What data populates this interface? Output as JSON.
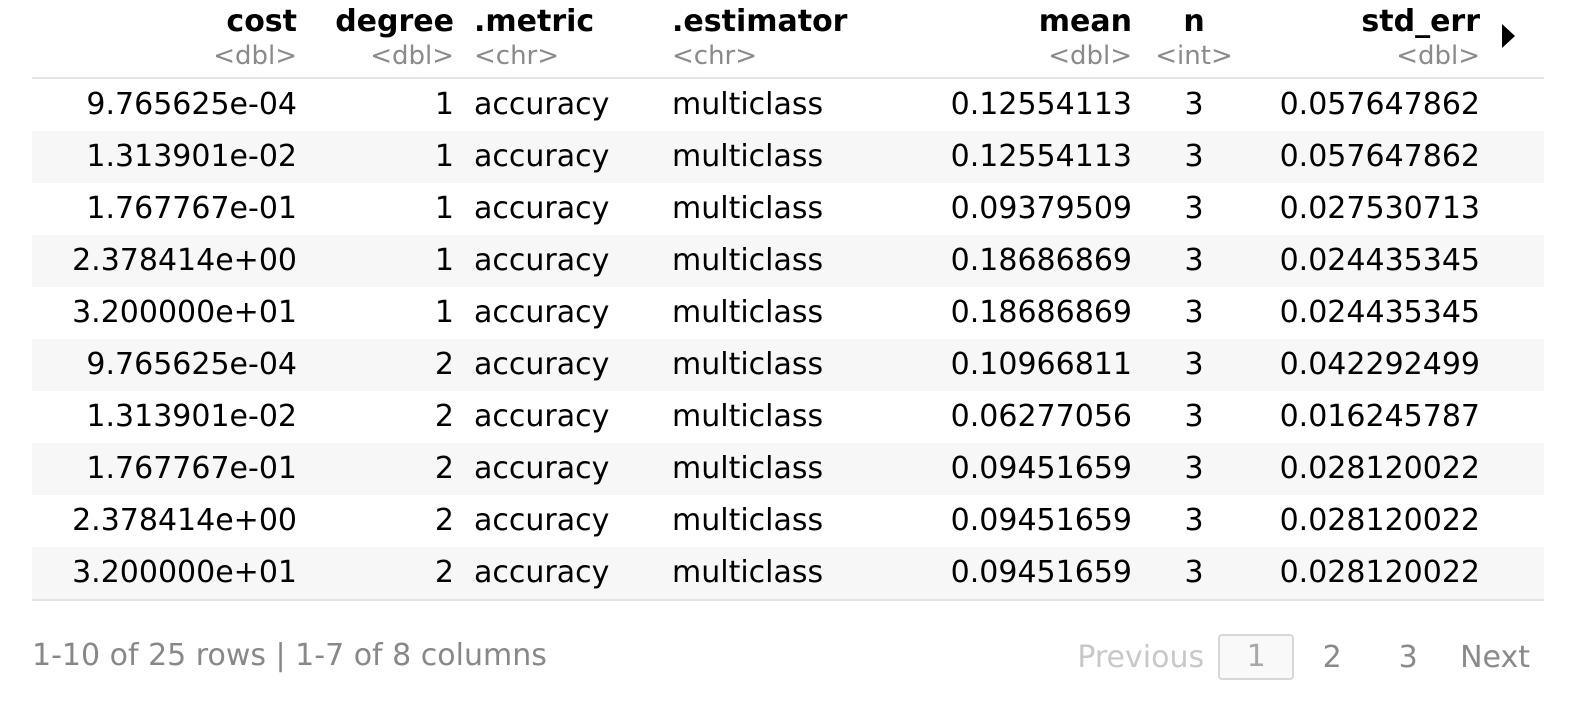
{
  "columns": [
    {
      "name": "cost",
      "type": "<dbl>"
    },
    {
      "name": "degree",
      "type": "<dbl>"
    },
    {
      "name": ".metric",
      "type": "<chr>"
    },
    {
      ".name_hint": "",
      "name": ".estimator",
      "type": "<chr>"
    },
    {
      "name": "mean",
      "type": "<dbl>"
    },
    {
      "name": "n",
      "type": "<int>"
    },
    {
      "name": "std_err",
      "type": "<dbl>"
    }
  ],
  "rows": [
    [
      "9.765625e-04",
      "1",
      "accuracy",
      "multiclass",
      "0.12554113",
      "3",
      "0.057647862"
    ],
    [
      "1.313901e-02",
      "1",
      "accuracy",
      "multiclass",
      "0.12554113",
      "3",
      "0.057647862"
    ],
    [
      "1.767767e-01",
      "1",
      "accuracy",
      "multiclass",
      "0.09379509",
      "3",
      "0.027530713"
    ],
    [
      "2.378414e+00",
      "1",
      "accuracy",
      "multiclass",
      "0.18686869",
      "3",
      "0.024435345"
    ],
    [
      "3.200000e+01",
      "1",
      "accuracy",
      "multiclass",
      "0.18686869",
      "3",
      "0.024435345"
    ],
    [
      "9.765625e-04",
      "2",
      "accuracy",
      "multiclass",
      "0.10966811",
      "3",
      "0.042292499"
    ],
    [
      "1.313901e-02",
      "2",
      "accuracy",
      "multiclass",
      "0.06277056",
      "3",
      "0.016245787"
    ],
    [
      "1.767767e-01",
      "2",
      "accuracy",
      "multiclass",
      "0.09451659",
      "3",
      "0.028120022"
    ],
    [
      "2.378414e+00",
      "2",
      "accuracy",
      "multiclass",
      "0.09451659",
      "3",
      "0.028120022"
    ],
    [
      "3.200000e+01",
      "2",
      "accuracy",
      "multiclass",
      "0.09451659",
      "3",
      "0.028120022"
    ]
  ],
  "footer": {
    "summary": "1-10 of 25 rows | 1-7 of 8 columns",
    "previous": "Previous",
    "pages": [
      "1",
      "2",
      "3"
    ],
    "current_page": "1",
    "next": "Next"
  }
}
